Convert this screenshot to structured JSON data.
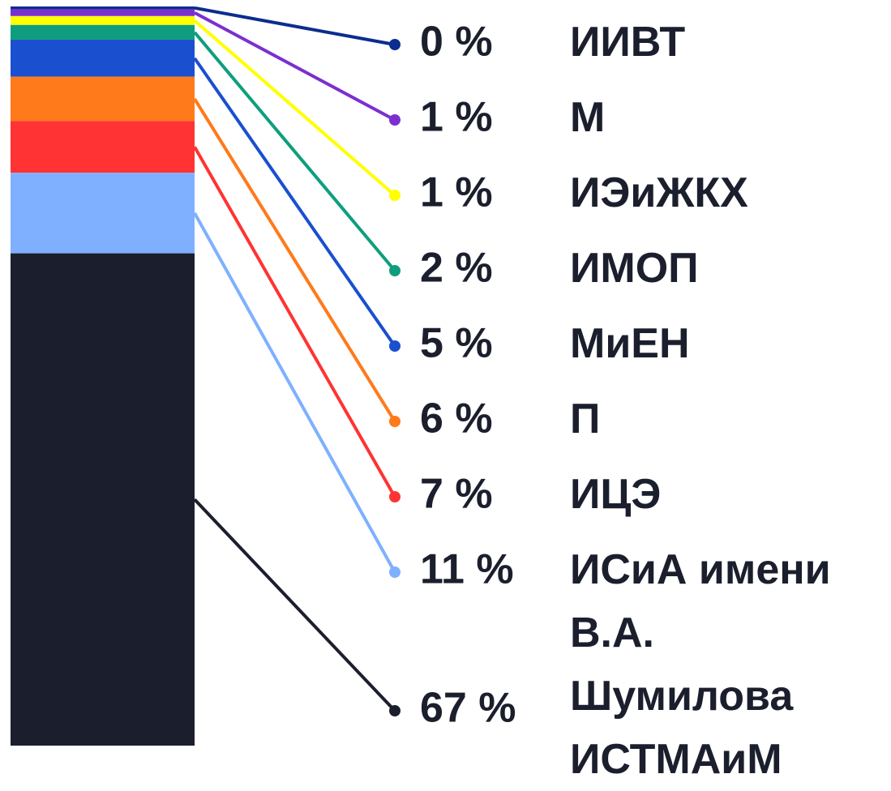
{
  "chart_data": {
    "type": "stacked-bar",
    "categories": [
      "ИИВТ",
      "М",
      "ИЭиЖКХ",
      "ИМОП",
      "МиЕН",
      "П",
      "ИЦЭ",
      "ИСиА имени В.А. Шумилова",
      "ИСТМАиМ"
    ],
    "series": [
      {
        "values": [
          0.4,
          0.9,
          1.2,
          2,
          5,
          6,
          7,
          10.9,
          66.6
        ],
        "value_labels": [
          "0 %",
          "1 %",
          "1 %",
          "2 %",
          "5 %",
          "6 %",
          "7 %",
          "11 %",
          "67 %"
        ],
        "colors": [
          "#0a2d8f",
          "#7b2fd0",
          "#ffff00",
          "#0e9e7e",
          "#1a4fd0",
          "#ff7a1a",
          "#ff3333",
          "#7fb0ff",
          "#1b1f2d"
        ]
      }
    ],
    "ylim": [
      0,
      100
    ]
  }
}
